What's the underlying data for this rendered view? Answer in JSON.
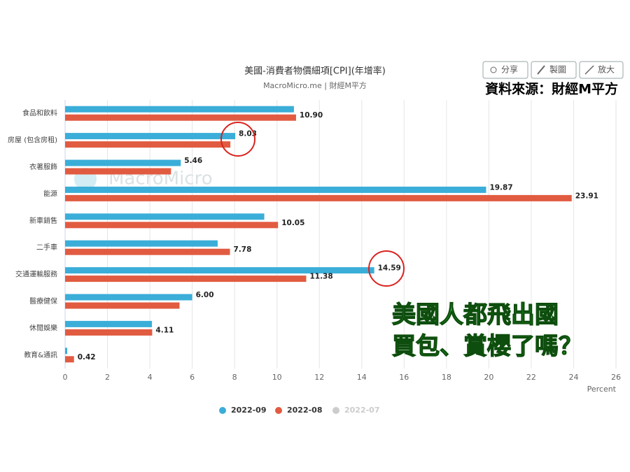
{
  "toolbar": {
    "buttons": [
      "分享",
      "製圖",
      "放大"
    ]
  },
  "source": "資料來源：財經M平方",
  "watermark": "MacroMicro",
  "annotation": {
    "lines": [
      "美國人都飛出國",
      "買包、賞櫻了嗎？"
    ]
  },
  "chart_data": {
    "type": "bar",
    "orientation": "horizontal",
    "title": "美國-消費者物價細項[CPI](年增率)",
    "subtitle": "MacroMicro.me | 財經M平方",
    "categories": [
      "食品和飲料",
      "房屋 (包含房租)",
      "衣著服飾",
      "能源",
      "新車銷售",
      "二手車",
      "交通運輸服務",
      "醫療健保",
      "休閒娛樂",
      "教育&通訊"
    ],
    "series": [
      {
        "name": "2022-09",
        "color": "#3aaed8",
        "values": [
          10.8,
          8.03,
          5.46,
          19.87,
          9.4,
          7.2,
          14.59,
          6.0,
          4.1,
          0.1
        ],
        "value_labels": [
          null,
          "8.03",
          "5.46",
          "19.87",
          null,
          null,
          "14.59",
          "6.00",
          null,
          null
        ]
      },
      {
        "name": "2022-08",
        "color": "#e15b41",
        "values": [
          10.9,
          7.8,
          5.0,
          23.91,
          10.05,
          7.78,
          11.38,
          5.4,
          4.11,
          0.42
        ],
        "value_labels": [
          "10.90",
          null,
          null,
          "23.91",
          "10.05",
          "7.78",
          "11.38",
          null,
          "4.11",
          "0.42"
        ]
      },
      {
        "name": "2022-07",
        "color": "#cccccc",
        "hidden": true,
        "values": [
          null,
          null,
          null,
          null,
          null,
          null,
          null,
          null,
          null,
          null
        ]
      }
    ],
    "xlim": [
      0,
      26
    ],
    "xticks": [
      0,
      2,
      4,
      6,
      8,
      10,
      12,
      14,
      16,
      18,
      20,
      22,
      24,
      26
    ],
    "xlabel": "Percent",
    "grid": true,
    "legend": "bottom"
  }
}
